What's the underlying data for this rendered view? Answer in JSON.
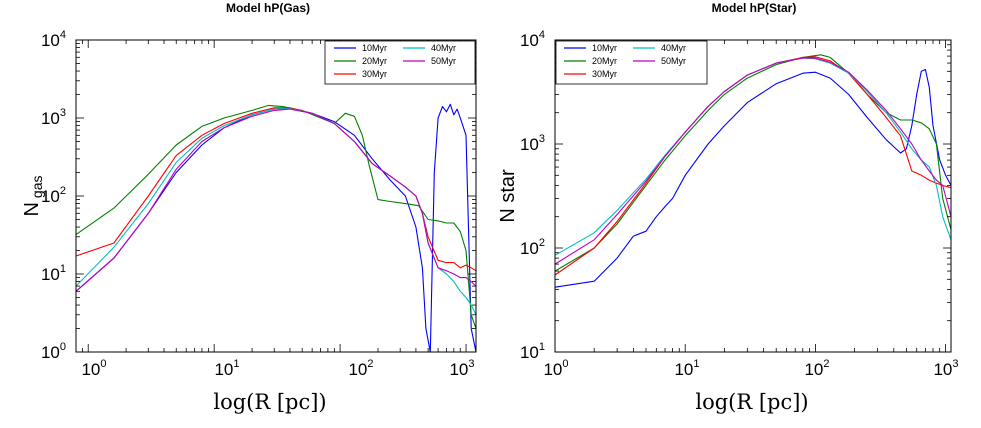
{
  "colors": {
    "10Myr": "#0000ff",
    "20Myr": "#008000",
    "30Myr": "#ff0000",
    "40Myr": "#00bfbf",
    "50Myr": "#bf00bf"
  },
  "chart_data": [
    {
      "type": "line",
      "title": "Model hP(Gas)",
      "xlabel": "log(R [pc])",
      "ylabel": "N",
      "ylabel_sub": "gas",
      "xscale": "log",
      "yscale": "log",
      "xlim": [
        0.8,
        1200
      ],
      "ylim": [
        1,
        10000
      ],
      "xticks": [
        {
          "base": "10",
          "exp": "0"
        },
        {
          "base": "10",
          "exp": "1"
        },
        {
          "base": "10",
          "exp": "2"
        },
        {
          "base": "10",
          "exp": "3"
        }
      ],
      "yticks": [
        {
          "base": "10",
          "exp": "0"
        },
        {
          "base": "10",
          "exp": "1"
        },
        {
          "base": "10",
          "exp": "2"
        },
        {
          "base": "10",
          "exp": "3"
        },
        {
          "base": "10",
          "exp": "4"
        }
      ],
      "legend_position": "top-right",
      "series": [
        {
          "name": "10Myr",
          "x": [
            0.8,
            1.6,
            3,
            5,
            8,
            12,
            20,
            30,
            40,
            60,
            90,
            130,
            180,
            250,
            330,
            400,
            450,
            480,
            520,
            560,
            600,
            650,
            700,
            750,
            800,
            850,
            900,
            1000,
            1100,
            1200
          ],
          "y": [
            6,
            16,
            60,
            200,
            450,
            750,
            1100,
            1300,
            1320,
            1150,
            900,
            600,
            300,
            160,
            100,
            40,
            12,
            2,
            1,
            200,
            1000,
            1400,
            1200,
            1500,
            1100,
            1300,
            1000,
            600,
            2,
            1
          ]
        },
        {
          "name": "20Myr",
          "x": [
            0.8,
            1.6,
            3,
            5,
            8,
            12,
            20,
            27,
            35,
            50,
            70,
            90,
            110,
            130,
            150,
            170,
            200,
            250,
            330,
            420,
            500,
            600,
            700,
            800,
            900,
            1000,
            1100,
            1200
          ],
          "y": [
            32,
            70,
            190,
            450,
            780,
            1000,
            1250,
            1450,
            1400,
            1250,
            1000,
            850,
            1150,
            1050,
            600,
            250,
            90,
            85,
            80,
            75,
            50,
            48,
            45,
            45,
            35,
            20,
            3,
            2
          ]
        },
        {
          "name": "30Myr",
          "x": [
            0.8,
            1.6,
            3,
            5,
            8,
            12,
            20,
            30,
            40,
            60,
            90,
            130,
            180,
            250,
            330,
            400,
            450,
            500,
            600,
            700,
            800,
            900,
            1000,
            1100,
            1200
          ],
          "y": [
            17,
            25,
            100,
            330,
            600,
            850,
            1150,
            1350,
            1350,
            1150,
            850,
            500,
            260,
            180,
            130,
            100,
            60,
            30,
            15,
            14,
            14,
            12,
            13,
            12,
            11
          ]
        },
        {
          "name": "40Myr",
          "x": [
            0.8,
            1.6,
            3,
            5,
            8,
            12,
            20,
            30,
            40,
            60,
            90,
            130,
            180,
            250,
            330,
            400,
            450,
            500,
            600,
            700,
            800,
            900,
            1000,
            1100,
            1200
          ],
          "y": [
            7,
            22,
            80,
            270,
            550,
            800,
            1100,
            1300,
            1320,
            1150,
            850,
            500,
            260,
            180,
            130,
            100,
            60,
            25,
            12,
            10,
            8,
            6,
            5,
            4,
            3
          ]
        },
        {
          "name": "50Myr",
          "x": [
            0.8,
            1.6,
            3,
            5,
            8,
            12,
            20,
            30,
            40,
            60,
            90,
            130,
            180,
            250,
            330,
            400,
            450,
            500,
            600,
            700,
            800,
            900,
            1000,
            1100,
            1200
          ],
          "y": [
            6,
            16,
            60,
            220,
            500,
            750,
            1050,
            1250,
            1300,
            1150,
            850,
            500,
            260,
            180,
            130,
            100,
            60,
            25,
            12,
            11,
            10,
            9,
            9,
            8,
            7
          ]
        }
      ]
    },
    {
      "type": "line",
      "title": "Model hP(Star)",
      "xlabel": "log(R [pc])",
      "ylabel": "N star",
      "ylabel_sub": "",
      "xscale": "log",
      "yscale": "log",
      "xlim": [
        1,
        1100
      ],
      "ylim": [
        10,
        10000
      ],
      "xticks": [
        {
          "base": "10",
          "exp": "0"
        },
        {
          "base": "10",
          "exp": "1"
        },
        {
          "base": "10",
          "exp": "2"
        },
        {
          "base": "10",
          "exp": "3"
        }
      ],
      "yticks": [
        {
          "base": "10",
          "exp": "1"
        },
        {
          "base": "10",
          "exp": "2"
        },
        {
          "base": "10",
          "exp": "3"
        },
        {
          "base": "10",
          "exp": "4"
        }
      ],
      "legend_position": "top-left",
      "series": [
        {
          "name": "10Myr",
          "x": [
            1,
            2,
            3,
            4,
            5,
            6,
            7,
            8,
            10,
            15,
            20,
            30,
            50,
            80,
            100,
            130,
            180,
            250,
            350,
            450,
            500,
            550,
            600,
            650,
            700,
            750,
            800,
            900,
            1000,
            1100
          ],
          "y": [
            42,
            48,
            80,
            130,
            145,
            200,
            250,
            300,
            500,
            1000,
            1500,
            2500,
            3800,
            4800,
            4900,
            4300,
            3000,
            1800,
            1100,
            820,
            900,
            1500,
            3000,
            5000,
            5200,
            3500,
            1500,
            700,
            500,
            400
          ]
        },
        {
          "name": "20Myr",
          "x": [
            1,
            2,
            3,
            5,
            7,
            10,
            15,
            20,
            30,
            50,
            80,
            110,
            130,
            180,
            250,
            350,
            450,
            550,
            650,
            750,
            850,
            950,
            1100
          ],
          "y": [
            60,
            100,
            170,
            400,
            700,
            1200,
            2100,
            3000,
            4300,
            5800,
            6800,
            7200,
            6800,
            4800,
            3000,
            2000,
            1700,
            1700,
            1600,
            1400,
            1000,
            300,
            150
          ]
        },
        {
          "name": "30Myr",
          "x": [
            1,
            2,
            3,
            5,
            7,
            10,
            15,
            20,
            30,
            50,
            80,
            100,
            130,
            180,
            250,
            350,
            450,
            500,
            550,
            650,
            750,
            850,
            950,
            1100
          ],
          "y": [
            55,
            100,
            180,
            420,
            760,
            1300,
            2300,
            3200,
            4600,
            6000,
            6800,
            6900,
            6300,
            4800,
            3000,
            1800,
            1200,
            800,
            550,
            500,
            450,
            420,
            400,
            380
          ]
        },
        {
          "name": "40Myr",
          "x": [
            1,
            2,
            3,
            5,
            7,
            10,
            15,
            20,
            30,
            50,
            80,
            100,
            130,
            180,
            250,
            350,
            450,
            550,
            650,
            750,
            850,
            950,
            1100
          ],
          "y": [
            85,
            140,
            230,
            460,
            780,
            1300,
            2300,
            3200,
            4600,
            6000,
            6700,
            6600,
            6000,
            4800,
            3200,
            2000,
            1300,
            900,
            700,
            600,
            400,
            200,
            120
          ]
        },
        {
          "name": "50Myr",
          "x": [
            1,
            2,
            3,
            5,
            7,
            10,
            15,
            20,
            30,
            50,
            80,
            100,
            130,
            180,
            250,
            350,
            450,
            550,
            650,
            750,
            850,
            950,
            1100
          ],
          "y": [
            70,
            120,
            210,
            440,
            760,
            1300,
            2300,
            3200,
            4600,
            6000,
            6700,
            6700,
            6100,
            4900,
            3300,
            2100,
            1400,
            1000,
            700,
            550,
            450,
            400,
            200
          ]
        }
      ]
    }
  ]
}
